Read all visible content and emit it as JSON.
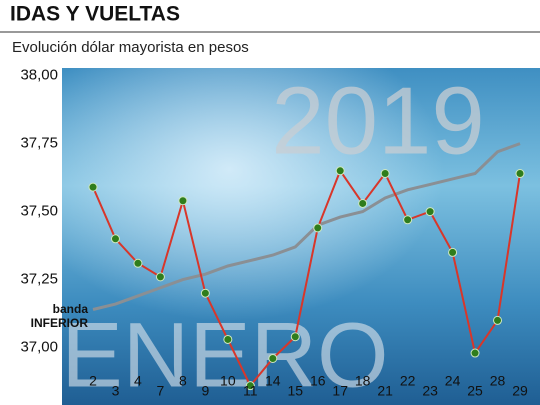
{
  "chart_data": {
    "type": "line",
    "title": "IDAS Y VUELTAS",
    "subtitle": "Evolución dólar mayorista en pesos",
    "year": "2019",
    "month": "ENERO",
    "categories": [
      "2",
      "3",
      "4",
      "7",
      "8",
      "9",
      "10",
      "11",
      "14",
      "15",
      "16",
      "17",
      "18",
      "21",
      "22",
      "23",
      "24",
      "25",
      "28",
      "29"
    ],
    "series": [
      {
        "name": null,
        "color": "#d8362a",
        "values": [
          37.59,
          37.4,
          37.31,
          37.26,
          37.54,
          37.2,
          37.03,
          36.86,
          36.96,
          37.04,
          37.44,
          37.65,
          37.53,
          37.64,
          37.47,
          37.5,
          37.35,
          36.98,
          37.1,
          37.64
        ]
      },
      {
        "name": "banda INFERIOR",
        "color": "#8a8f94",
        "values": [
          37.14,
          37.16,
          37.19,
          37.22,
          37.25,
          37.27,
          37.3,
          37.32,
          37.34,
          37.37,
          37.45,
          37.48,
          37.5,
          37.55,
          37.58,
          37.6,
          37.62,
          37.64,
          37.72,
          37.75
        ]
      }
    ],
    "marker_color": "#2f7d1c",
    "ylim": [
      36.8,
      38.05
    ],
    "yticks": [
      {
        "value": 37,
        "label": "37,00"
      },
      {
        "value": 37.25,
        "label": "37,25"
      },
      {
        "value": 37.5,
        "label": "37,50"
      },
      {
        "value": 37.75,
        "label": "37,75"
      },
      {
        "value": 38,
        "label": "38,00"
      }
    ]
  }
}
